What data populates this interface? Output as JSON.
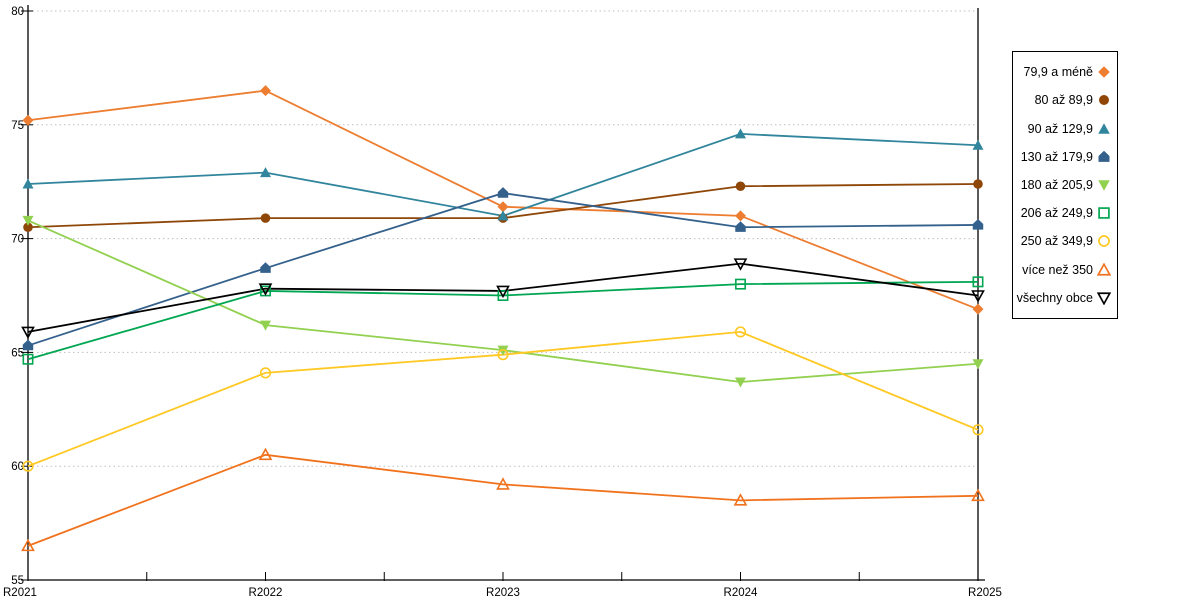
{
  "chart_data": {
    "type": "line",
    "title": "",
    "xlabel": "",
    "ylabel": "",
    "categories": [
      "R2021",
      "R2022",
      "R2023",
      "R2024",
      "R2025"
    ],
    "ylim": [
      55,
      80
    ],
    "yticks": [
      55,
      60,
      65,
      70,
      75,
      80
    ],
    "grid": "horizontal dotted gridlines",
    "legend_position": "right outside, boxed",
    "series": [
      {
        "name": "79,9 a méně",
        "marker": "diamond",
        "fill": "solid",
        "color": "#ED7D31",
        "values": [
          75.2,
          76.5,
          71.4,
          71.0,
          66.9
        ]
      },
      {
        "name": "80 až 89,9",
        "marker": "circle",
        "fill": "solid",
        "color": "#8F4708",
        "values": [
          70.5,
          70.9,
          70.9,
          72.3,
          72.4
        ]
      },
      {
        "name": "90 až 129,9",
        "marker": "triangle-up",
        "fill": "solid",
        "color": "#31859C",
        "values": [
          72.4,
          72.9,
          71.0,
          74.6,
          74.1
        ]
      },
      {
        "name": "130 až 179,9",
        "marker": "pentagon",
        "fill": "solid",
        "color": "#34618C",
        "values": [
          65.3,
          68.7,
          72.0,
          70.5,
          70.6
        ]
      },
      {
        "name": "180 až 205,9",
        "marker": "triangle-down",
        "fill": "solid",
        "color": "#92D050",
        "values": [
          70.8,
          66.2,
          65.1,
          63.7,
          64.5
        ]
      },
      {
        "name": "206 až 249,9",
        "marker": "square",
        "fill": "open",
        "color": "#00A651",
        "values": [
          64.7,
          67.7,
          67.5,
          68.0,
          68.1
        ]
      },
      {
        "name": "250 až 349,9",
        "marker": "circle",
        "fill": "open",
        "color": "#FFC822",
        "values": [
          60.0,
          64.1,
          64.9,
          65.9,
          61.6
        ]
      },
      {
        "name": "více než 350",
        "marker": "triangle-up",
        "fill": "open",
        "color": "#F1721D",
        "values": [
          56.5,
          60.5,
          59.2,
          58.5,
          58.7
        ]
      },
      {
        "name": "všechny obce",
        "marker": "triangle-down",
        "fill": "open",
        "color": "#000000",
        "values": [
          65.9,
          67.8,
          67.7,
          68.9,
          67.5
        ]
      }
    ],
    "colors": {
      "axis": "#000000",
      "gridline": "#BFBFBF",
      "background": "#FFFFFF"
    }
  }
}
